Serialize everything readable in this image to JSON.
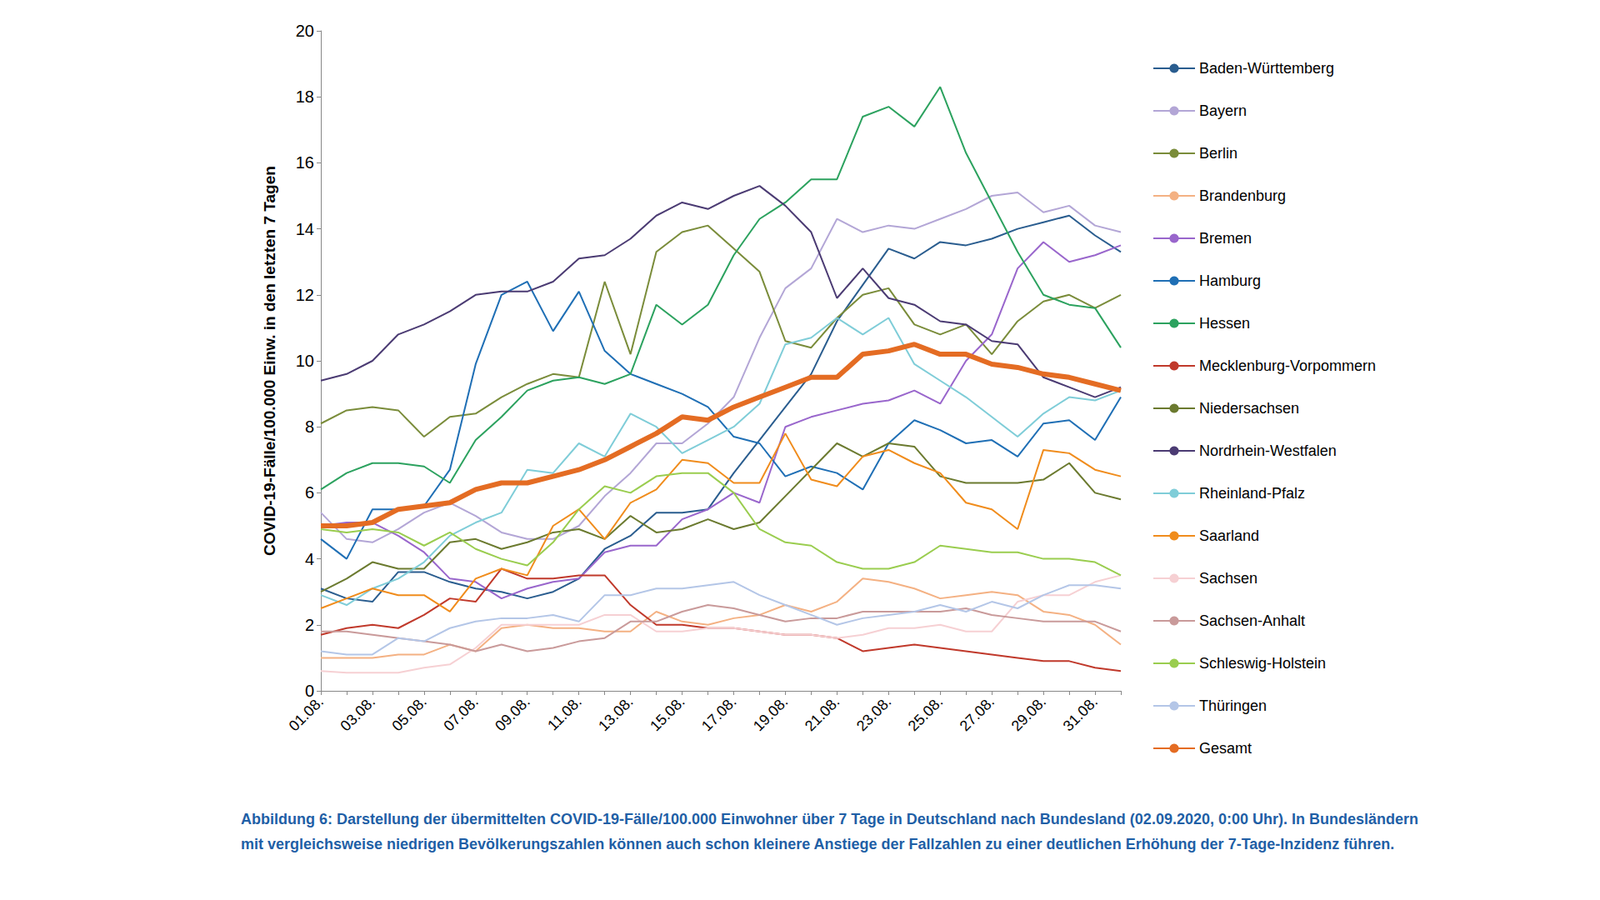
{
  "chart_data": {
    "type": "line",
    "ylabel": "COVID-19-Fälle/100.000 Einw. in den letzten 7 Tagen",
    "caption": "Abbildung 6: Darstellung der übermittelten COVID-19-Fälle/100.000 Einwohner über 7 Tage in Deutschland nach Bundesland (02.09.2020, 0:00 Uhr). In Bundesländern mit vergleichsweise niedrigen Bevölkerungszahlen können auch schon kleinere Anstiege der Fallzahlen zu einer deutlichen Erhöhung der 7-Tage-Inzidenz führen.",
    "categories": [
      "01.08.",
      null,
      "03.08.",
      null,
      "05.08.",
      null,
      "07.08.",
      null,
      "09.08.",
      null,
      "11.08.",
      null,
      "13.08.",
      null,
      "15.08.",
      null,
      "17.08.",
      null,
      "19.08.",
      null,
      "21.08.",
      null,
      "23.08.",
      null,
      "25.08.",
      null,
      "27.08.",
      null,
      "29.08.",
      null,
      "31.08.",
      null
    ],
    "ylim": [
      0,
      20
    ],
    "yticks": [
      0,
      2,
      4,
      6,
      8,
      10,
      12,
      14,
      16,
      18,
      20
    ],
    "grid": false,
    "legend": "right",
    "series": [
      {
        "name": "Baden-Württemberg",
        "color": "#2a5d8f",
        "line_style": "solid",
        "values": [
          3.1,
          2.8,
          2.7,
          3.6,
          3.6,
          3.3,
          3.1,
          3.0,
          2.8,
          3.0,
          3.4,
          4.3,
          4.7,
          5.4,
          5.4,
          5.5,
          6.6,
          7.6,
          8.6,
          9.6,
          11.2,
          12.3,
          13.4,
          13.1,
          13.6,
          13.5,
          13.7,
          14.0,
          14.2,
          14.4,
          13.8,
          13.3
        ]
      },
      {
        "name": "Bayern",
        "color": "#b3a6d6",
        "line_style": "solid",
        "values": [
          5.4,
          4.6,
          4.5,
          4.9,
          5.4,
          5.7,
          5.3,
          4.8,
          4.6,
          4.6,
          5.0,
          5.9,
          6.6,
          7.5,
          7.5,
          8.1,
          8.9,
          10.7,
          12.2,
          12.8,
          14.3,
          13.9,
          14.1,
          14.0,
          14.3,
          14.6,
          15.0,
          15.1,
          14.5,
          14.7,
          14.1,
          13.9
        ]
      },
      {
        "name": "Berlin",
        "color": "#7a8c3a",
        "line_style": "solid",
        "values": [
          8.1,
          8.5,
          8.6,
          8.5,
          7.7,
          8.3,
          8.4,
          8.9,
          9.3,
          9.6,
          9.5,
          12.4,
          10.2,
          13.3,
          13.9,
          14.1,
          13.4,
          12.7,
          10.6,
          10.4,
          11.3,
          12.0,
          12.2,
          11.1,
          10.8,
          11.1,
          10.2,
          11.2,
          11.8,
          12.0,
          11.6,
          12.0
        ]
      },
      {
        "name": "Brandenburg",
        "color": "#f4b183",
        "line_style": "solid",
        "values": [
          1.0,
          1.0,
          1.0,
          1.1,
          1.1,
          1.4,
          1.2,
          1.9,
          2.0,
          1.9,
          1.9,
          1.8,
          1.8,
          2.4,
          2.1,
          2.0,
          2.2,
          2.3,
          2.6,
          2.4,
          2.7,
          3.4,
          3.3,
          3.1,
          2.8,
          2.9,
          3.0,
          2.9,
          2.4,
          2.3,
          2.0,
          1.4
        ]
      },
      {
        "name": "Bremen",
        "color": "#9966cc",
        "line_style": "solid",
        "values": [
          5.0,
          5.1,
          5.1,
          4.7,
          4.2,
          3.4,
          3.3,
          2.8,
          3.1,
          3.3,
          3.4,
          4.2,
          4.4,
          4.4,
          5.2,
          5.5,
          6.0,
          5.7,
          8.0,
          8.3,
          8.5,
          8.7,
          8.8,
          9.1,
          8.7,
          10.0,
          10.8,
          12.8,
          13.6,
          13.0,
          13.2,
          13.5
        ]
      },
      {
        "name": "Hamburg",
        "color": "#1f6fb5",
        "line_style": "solid",
        "values": [
          4.6,
          4.0,
          5.5,
          5.5,
          5.6,
          6.7,
          9.9,
          12.0,
          12.4,
          10.9,
          12.1,
          10.3,
          9.6,
          9.3,
          9.0,
          8.6,
          7.7,
          7.5,
          6.5,
          6.8,
          6.6,
          6.1,
          7.5,
          8.2,
          7.9,
          7.5,
          7.6,
          7.1,
          8.1,
          8.2,
          7.6,
          8.9
        ]
      },
      {
        "name": "Hessen",
        "color": "#2ca25f",
        "line_style": "solid",
        "values": [
          6.1,
          6.6,
          6.9,
          6.9,
          6.8,
          6.3,
          7.6,
          8.3,
          9.1,
          9.4,
          9.5,
          9.3,
          9.6,
          11.7,
          11.1,
          11.7,
          13.2,
          14.3,
          14.8,
          15.5,
          15.5,
          17.4,
          17.7,
          17.1,
          18.3,
          16.3,
          14.8,
          13.3,
          12.0,
          11.7,
          11.6,
          10.4
        ]
      },
      {
        "name": "Mecklenburg-Vorpommern",
        "color": "#c0392b",
        "line_style": "solid",
        "values": [
          1.7,
          1.9,
          2.0,
          1.9,
          2.3,
          2.8,
          2.7,
          3.7,
          3.4,
          3.4,
          3.5,
          3.5,
          2.6,
          2.0,
          2.0,
          1.9,
          1.9,
          1.8,
          1.7,
          1.7,
          1.6,
          1.2,
          1.3,
          1.4,
          1.3,
          1.2,
          1.1,
          1.0,
          0.9,
          0.9,
          0.7,
          0.6
        ]
      },
      {
        "name": "Niedersachsen",
        "color": "#6b7a2f",
        "line_style": "solid",
        "values": [
          3.0,
          3.4,
          3.9,
          3.7,
          3.7,
          4.5,
          4.6,
          4.3,
          4.5,
          4.8,
          4.9,
          4.6,
          5.3,
          4.8,
          4.9,
          5.2,
          4.9,
          5.1,
          5.9,
          6.7,
          7.5,
          7.1,
          7.5,
          7.4,
          6.5,
          6.3,
          6.3,
          6.3,
          6.4,
          6.9,
          6.0,
          5.8
        ]
      },
      {
        "name": "Nordrhein-Westfalen",
        "color": "#4b3b73",
        "line_style": "solid",
        "values": [
          9.4,
          9.6,
          10.0,
          10.8,
          11.1,
          11.5,
          12.0,
          12.1,
          12.1,
          12.4,
          13.1,
          13.2,
          13.7,
          14.4,
          14.8,
          14.6,
          15.0,
          15.3,
          14.7,
          13.9,
          11.9,
          12.8,
          11.9,
          11.7,
          11.2,
          11.1,
          10.6,
          10.5,
          9.5,
          9.2,
          8.9,
          9.2
        ]
      },
      {
        "name": "Rheinland-Pfalz",
        "color": "#7fcdd8",
        "line_style": "solid",
        "values": [
          2.9,
          2.6,
          3.1,
          3.4,
          3.9,
          4.7,
          5.1,
          5.4,
          6.7,
          6.6,
          7.5,
          7.1,
          8.4,
          8.0,
          7.2,
          7.6,
          8.0,
          8.7,
          10.5,
          10.7,
          11.3,
          10.8,
          11.3,
          9.9,
          9.4,
          8.9,
          8.3,
          7.7,
          8.4,
          8.9,
          8.8,
          9.1
        ]
      },
      {
        "name": "Saarland",
        "color": "#f08c1c",
        "line_style": "solid",
        "values": [
          2.5,
          2.8,
          3.1,
          2.9,
          2.9,
          2.4,
          3.4,
          3.7,
          3.5,
          5.0,
          5.5,
          4.6,
          5.7,
          6.1,
          7.0,
          6.9,
          6.3,
          6.3,
          7.8,
          6.4,
          6.2,
          7.1,
          7.3,
          6.9,
          6.6,
          5.7,
          5.5,
          4.9,
          7.3,
          7.2,
          6.7,
          6.5
        ]
      },
      {
        "name": "Sachsen",
        "color": "#f6d0d3",
        "line_style": "solid",
        "values": [
          0.6,
          0.55,
          0.55,
          0.55,
          0.7,
          0.8,
          1.3,
          2.0,
          2.0,
          2.0,
          2.0,
          2.3,
          2.3,
          1.8,
          1.8,
          1.9,
          1.9,
          1.8,
          1.7,
          1.7,
          1.6,
          1.7,
          1.9,
          1.9,
          2.0,
          1.8,
          1.8,
          2.7,
          2.9,
          2.9,
          3.3,
          3.5
        ]
      },
      {
        "name": "Sachsen-Anhalt",
        "color": "#c99a9a",
        "line_style": "solid",
        "values": [
          1.8,
          1.8,
          1.7,
          1.6,
          1.5,
          1.4,
          1.2,
          1.4,
          1.2,
          1.3,
          1.5,
          1.6,
          2.1,
          2.1,
          2.4,
          2.6,
          2.5,
          2.3,
          2.1,
          2.2,
          2.2,
          2.4,
          2.4,
          2.4,
          2.4,
          2.5,
          2.3,
          2.2,
          2.1,
          2.1,
          2.1,
          1.8
        ]
      },
      {
        "name": "Schleswig-Holstein",
        "color": "#9acd4f",
        "line_style": "solid",
        "values": [
          4.9,
          4.8,
          4.9,
          4.8,
          4.4,
          4.8,
          4.3,
          4.0,
          3.8,
          4.5,
          5.5,
          6.2,
          6.0,
          6.5,
          6.6,
          6.6,
          6.0,
          4.9,
          4.5,
          4.4,
          3.9,
          3.7,
          3.7,
          3.9,
          4.4,
          4.3,
          4.2,
          4.2,
          4.0,
          4.0,
          3.9,
          3.5
        ]
      },
      {
        "name": "Thüringen",
        "color": "#b4c6e7",
        "line_style": "solid",
        "values": [
          1.2,
          1.1,
          1.1,
          1.6,
          1.5,
          1.9,
          2.1,
          2.2,
          2.2,
          2.3,
          2.1,
          2.9,
          2.9,
          3.1,
          3.1,
          3.2,
          3.3,
          2.9,
          2.6,
          2.3,
          2.0,
          2.2,
          2.3,
          2.4,
          2.6,
          2.4,
          2.7,
          2.5,
          2.9,
          3.2,
          3.2,
          3.1
        ]
      },
      {
        "name": "Gesamt",
        "color": "#e46c23",
        "line_style": "thick",
        "values": [
          5.0,
          5.0,
          5.1,
          5.5,
          5.6,
          5.7,
          6.1,
          6.3,
          6.3,
          6.5,
          6.7,
          7.0,
          7.4,
          7.8,
          8.3,
          8.2,
          8.6,
          8.9,
          9.2,
          9.5,
          9.5,
          10.2,
          10.3,
          10.5,
          10.2,
          10.2,
          9.9,
          9.8,
          9.6,
          9.5,
          9.3,
          9.1
        ]
      }
    ]
  }
}
